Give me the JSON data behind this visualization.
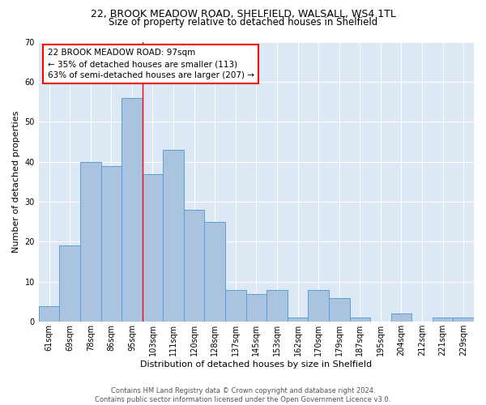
{
  "title1": "22, BROOK MEADOW ROAD, SHELFIELD, WALSALL, WS4 1TL",
  "title2": "Size of property relative to detached houses in Shelfield",
  "xlabel": "Distribution of detached houses by size in Shelfield",
  "ylabel": "Number of detached properties",
  "footnote": "Contains HM Land Registry data © Crown copyright and database right 2024.\nContains public sector information licensed under the Open Government Licence v3.0.",
  "categories": [
    "61sqm",
    "69sqm",
    "78sqm",
    "86sqm",
    "95sqm",
    "103sqm",
    "111sqm",
    "120sqm",
    "128sqm",
    "137sqm",
    "145sqm",
    "153sqm",
    "162sqm",
    "170sqm",
    "179sqm",
    "187sqm",
    "195sqm",
    "204sqm",
    "212sqm",
    "221sqm",
    "229sqm"
  ],
  "values": [
    4,
    19,
    40,
    39,
    56,
    37,
    43,
    28,
    25,
    8,
    7,
    8,
    1,
    8,
    6,
    1,
    0,
    2,
    0,
    1,
    1
  ],
  "bar_color": "#aac4e0",
  "bar_edge_color": "#5a9fd4",
  "background_color": "#dde8f5",
  "ylim": [
    0,
    70
  ],
  "yticks": [
    0,
    10,
    20,
    30,
    40,
    50,
    60,
    70
  ],
  "vline_x": 4.5,
  "vline_color": "red",
  "annotation_text": "22 BROOK MEADOW ROAD: 97sqm\n← 35% of detached houses are smaller (113)\n63% of semi-detached houses are larger (207) →",
  "box_color": "red",
  "title1_fontsize": 9,
  "title2_fontsize": 8.5,
  "ylabel_fontsize": 8,
  "xlabel_fontsize": 8,
  "tick_fontsize": 7,
  "annotation_fontsize": 7.5,
  "footnote_fontsize": 6
}
